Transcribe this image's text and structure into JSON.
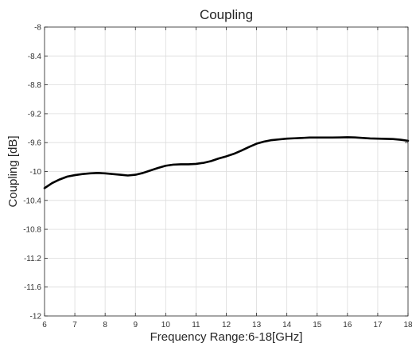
{
  "chart_data": {
    "type": "line",
    "title": "Coupling",
    "xlabel": "Frequency Range:6-18[GHz]",
    "ylabel": "Coupling [dB]",
    "xlim": [
      6,
      18
    ],
    "ylim": [
      -12,
      -8
    ],
    "grid": true,
    "x_ticks": [
      "6",
      "7",
      "8",
      "9",
      "10",
      "11",
      "12",
      "13",
      "14",
      "15",
      "16",
      "17",
      "18"
    ],
    "y_ticks": [
      "-8",
      "-8.4",
      "-8.8",
      "-9.2",
      "-9.6",
      "-10",
      "-10.4",
      "-10.8",
      "-11.2",
      "-11.6",
      "-12"
    ],
    "series": [
      {
        "color": "#000000",
        "x": [
          6.0,
          6.25,
          6.5,
          6.75,
          7.0,
          7.25,
          7.5,
          7.75,
          8.0,
          8.25,
          8.5,
          8.75,
          9.0,
          9.25,
          9.5,
          9.75,
          10.0,
          10.25,
          10.5,
          10.75,
          11.0,
          11.25,
          11.5,
          11.75,
          12.0,
          12.25,
          12.5,
          12.75,
          13.0,
          13.25,
          13.5,
          13.75,
          14.0,
          14.25,
          14.5,
          14.75,
          15.0,
          15.25,
          15.5,
          15.75,
          16.0,
          16.25,
          16.5,
          16.75,
          17.0,
          17.25,
          17.5,
          17.75,
          18.0
        ],
        "values": [
          -10.23,
          -10.16,
          -10.11,
          -10.07,
          -10.05,
          -10.035,
          -10.025,
          -10.02,
          -10.025,
          -10.035,
          -10.045,
          -10.055,
          -10.045,
          -10.02,
          -9.985,
          -9.95,
          -9.92,
          -9.905,
          -9.9,
          -9.9,
          -9.895,
          -9.88,
          -9.855,
          -9.82,
          -9.79,
          -9.755,
          -9.71,
          -9.66,
          -9.615,
          -9.585,
          -9.565,
          -9.555,
          -9.545,
          -9.54,
          -9.535,
          -9.53,
          -9.53,
          -9.53,
          -9.53,
          -9.528,
          -9.525,
          -9.528,
          -9.535,
          -9.542,
          -9.545,
          -9.548,
          -9.55,
          -9.56,
          -9.575
        ]
      }
    ]
  }
}
